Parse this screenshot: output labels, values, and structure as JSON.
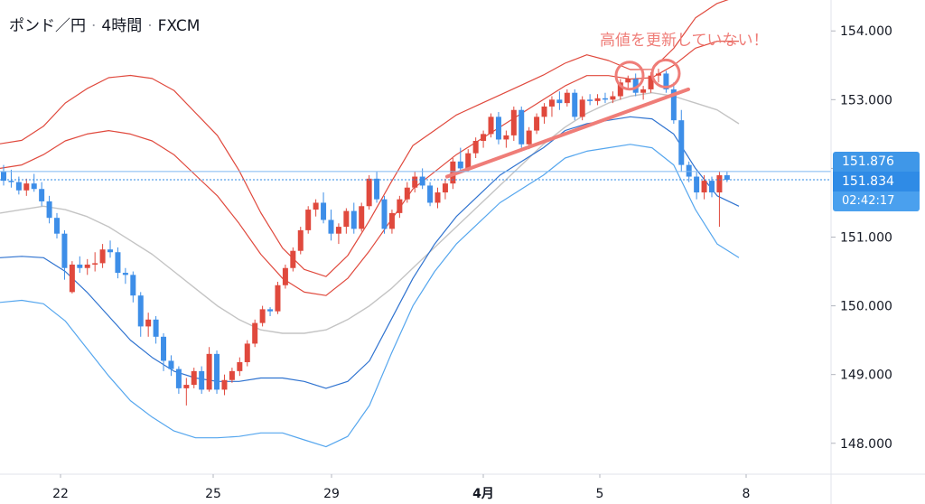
{
  "header": {
    "symbol": "ポンド／円",
    "interval": "4時間",
    "source": "FXCM",
    "separator": "·"
  },
  "annotation": {
    "text": "高値を更新していない！",
    "color": "#ef7d78"
  },
  "price_tags": {
    "upper_band": "151.876",
    "last_price": "151.834",
    "countdown": "02:42:17"
  },
  "colors": {
    "up": "#e0493d",
    "down": "#3d8ee8",
    "band_red": "#e0493d",
    "band_blue": "#2f73d0",
    "band_lightblue": "#55a6ee",
    "mid_gray": "#c4c4c4",
    "annotation": "#ef7d78"
  },
  "chart_data": {
    "type": "candlestick",
    "title": "ポンド／円 · 4時間 · FXCM",
    "ylim": [
      147.55,
      154.45
    ],
    "x_ticks": [
      "22",
      "25",
      "29",
      "4月",
      "5",
      "8"
    ],
    "y_ticks": [
      "148.000",
      "149.000",
      "150.000",
      "151.000",
      "152.000",
      "153.000",
      "154.000"
    ],
    "last_price": 151.834,
    "candles": [
      [
        151.95,
        152.05,
        151.75,
        151.82
      ],
      [
        151.82,
        151.98,
        151.72,
        151.8
      ],
      [
        151.8,
        151.88,
        151.62,
        151.68
      ],
      [
        151.68,
        151.85,
        151.6,
        151.78
      ],
      [
        151.78,
        151.92,
        151.66,
        151.7
      ],
      [
        151.7,
        151.8,
        151.45,
        151.52
      ],
      [
        151.52,
        151.6,
        151.2,
        151.28
      ],
      [
        151.28,
        151.35,
        150.98,
        151.05
      ],
      [
        151.05,
        151.1,
        150.38,
        150.55
      ],
      [
        150.2,
        150.65,
        150.18,
        150.6
      ],
      [
        150.6,
        150.72,
        150.48,
        150.55
      ],
      [
        150.55,
        150.68,
        150.45,
        150.6
      ],
      [
        150.6,
        150.78,
        150.5,
        150.62
      ],
      [
        150.62,
        150.9,
        150.55,
        150.82
      ],
      [
        150.82,
        150.95,
        150.7,
        150.78
      ],
      [
        150.78,
        150.85,
        150.4,
        150.48
      ],
      [
        150.48,
        150.55,
        150.32,
        150.45
      ],
      [
        150.45,
        150.5,
        150.05,
        150.15
      ],
      [
        150.15,
        150.2,
        149.55,
        149.7
      ],
      [
        149.7,
        149.9,
        149.55,
        149.8
      ],
      [
        149.8,
        149.85,
        149.45,
        149.55
      ],
      [
        149.55,
        149.6,
        149.05,
        149.2
      ],
      [
        149.2,
        149.28,
        148.98,
        149.08
      ],
      [
        149.08,
        149.12,
        148.72,
        148.8
      ],
      [
        148.8,
        148.95,
        148.55,
        148.85
      ],
      [
        148.85,
        149.1,
        148.8,
        149.05
      ],
      [
        149.05,
        149.12,
        148.72,
        148.78
      ],
      [
        148.78,
        149.4,
        148.75,
        149.3
      ],
      [
        149.3,
        149.35,
        148.72,
        148.78
      ],
      [
        148.78,
        149.0,
        148.7,
        148.92
      ],
      [
        148.92,
        149.1,
        148.88,
        149.05
      ],
      [
        149.05,
        149.25,
        148.98,
        149.18
      ],
      [
        149.18,
        149.5,
        149.12,
        149.45
      ],
      [
        149.45,
        149.8,
        149.4,
        149.75
      ],
      [
        149.75,
        150.0,
        149.7,
        149.95
      ],
      [
        149.95,
        149.98,
        149.85,
        149.92
      ],
      [
        149.92,
        150.35,
        149.88,
        150.3
      ],
      [
        150.3,
        150.6,
        150.25,
        150.55
      ],
      [
        150.55,
        150.85,
        150.5,
        150.8
      ],
      [
        150.8,
        151.15,
        150.75,
        151.1
      ],
      [
        151.1,
        151.45,
        151.05,
        151.4
      ],
      [
        151.4,
        151.55,
        151.3,
        151.5
      ],
      [
        151.5,
        151.65,
        151.2,
        151.25
      ],
      [
        151.25,
        151.4,
        150.95,
        151.05
      ],
      [
        151.05,
        151.2,
        150.9,
        151.15
      ],
      [
        151.15,
        151.42,
        151.05,
        151.38
      ],
      [
        151.38,
        151.5,
        151.05,
        151.12
      ],
      [
        151.12,
        151.5,
        151.08,
        151.45
      ],
      [
        151.45,
        151.9,
        151.4,
        151.85
      ],
      [
        151.85,
        151.95,
        151.5,
        151.55
      ],
      [
        151.55,
        151.6,
        151.05,
        151.12
      ],
      [
        151.12,
        151.4,
        151.05,
        151.35
      ],
      [
        151.35,
        151.6,
        151.28,
        151.55
      ],
      [
        151.55,
        151.8,
        151.5,
        151.72
      ],
      [
        151.72,
        151.95,
        151.65,
        151.88
      ],
      [
        151.88,
        152.0,
        151.7,
        151.75
      ],
      [
        151.75,
        151.8,
        151.45,
        151.5
      ],
      [
        151.5,
        151.72,
        151.42,
        151.65
      ],
      [
        151.65,
        151.85,
        151.55,
        151.78
      ],
      [
        151.78,
        152.15,
        151.7,
        152.1
      ],
      [
        152.1,
        152.3,
        151.95,
        152.0
      ],
      [
        152.0,
        152.28,
        151.95,
        152.22
      ],
      [
        152.22,
        152.45,
        152.15,
        152.4
      ],
      [
        152.4,
        152.55,
        152.3,
        152.5
      ],
      [
        152.5,
        152.8,
        152.45,
        152.75
      ],
      [
        152.75,
        152.82,
        152.35,
        152.42
      ],
      [
        152.42,
        152.55,
        152.3,
        152.48
      ],
      [
        152.48,
        152.9,
        152.4,
        152.85
      ],
      [
        152.85,
        152.9,
        152.3,
        152.35
      ],
      [
        152.35,
        152.6,
        152.28,
        152.55
      ],
      [
        152.55,
        152.8,
        152.5,
        152.75
      ],
      [
        152.75,
        152.95,
        152.65,
        152.9
      ],
      [
        152.9,
        153.05,
        152.75,
        153.0
      ],
      [
        153.0,
        153.12,
        152.85,
        152.95
      ],
      [
        152.95,
        153.15,
        152.9,
        153.1
      ],
      [
        153.1,
        153.15,
        152.7,
        152.75
      ],
      [
        152.75,
        153.05,
        152.7,
        153.0
      ],
      [
        153.0,
        153.08,
        152.92,
        152.98
      ],
      [
        152.98,
        153.08,
        152.92,
        153.02
      ],
      [
        153.02,
        153.1,
        152.95,
        153.0
      ],
      [
        153.0,
        153.12,
        152.95,
        153.05
      ],
      [
        153.05,
        153.3,
        153.0,
        153.25
      ],
      [
        153.25,
        153.35,
        153.15,
        153.3
      ],
      [
        153.3,
        153.38,
        153.05,
        153.1
      ],
      [
        153.1,
        153.2,
        153.0,
        153.15
      ],
      [
        153.15,
        153.4,
        153.1,
        153.35
      ],
      [
        153.35,
        153.45,
        153.25,
        153.38
      ],
      [
        153.38,
        153.42,
        153.1,
        153.15
      ],
      [
        153.15,
        153.25,
        152.65,
        152.7
      ],
      [
        152.7,
        152.85,
        151.95,
        152.05
      ],
      [
        152.05,
        152.1,
        151.8,
        151.88
      ],
      [
        151.88,
        151.95,
        151.55,
        151.65
      ],
      [
        151.65,
        151.9,
        151.55,
        151.82
      ],
      [
        151.82,
        151.88,
        151.58,
        151.65
      ],
      [
        151.65,
        151.95,
        151.15,
        151.9
      ],
      [
        151.9,
        151.95,
        151.8,
        151.834
      ]
    ],
    "bands": {
      "upper": [
        152.0,
        152.05,
        152.2,
        152.4,
        152.5,
        152.55,
        152.5,
        152.4,
        152.2,
        151.9,
        151.6,
        151.2,
        150.75,
        150.4,
        150.2,
        150.15,
        150.4,
        150.8,
        151.25,
        151.7,
        151.95,
        152.2,
        152.4,
        152.6,
        152.8,
        153.0,
        153.2,
        153.35,
        153.35,
        153.3,
        153.32,
        153.5,
        153.75,
        153.85,
        153.85
      ],
      "mid": [
        151.35,
        151.4,
        151.45,
        151.4,
        151.3,
        151.15,
        150.95,
        150.75,
        150.5,
        150.25,
        150.0,
        149.8,
        149.65,
        149.6,
        149.6,
        149.65,
        149.8,
        150.0,
        150.25,
        150.55,
        150.85,
        151.15,
        151.45,
        151.75,
        152.05,
        152.35,
        152.6,
        152.8,
        152.95,
        153.05,
        153.1,
        153.05,
        152.95,
        152.85,
        152.65
      ],
      "lower": [
        150.7,
        150.72,
        150.7,
        150.5,
        150.2,
        149.85,
        149.5,
        149.25,
        149.05,
        148.95,
        148.9,
        148.9,
        148.95,
        148.95,
        148.9,
        148.8,
        148.9,
        149.2,
        149.8,
        150.4,
        150.9,
        151.3,
        151.6,
        151.9,
        152.1,
        152.3,
        152.55,
        152.65,
        152.7,
        152.75,
        152.72,
        152.5,
        152.0,
        151.6,
        151.45
      ],
      "outer": [
        150.05,
        150.08,
        150.03,
        149.78,
        149.38,
        148.98,
        148.62,
        148.38,
        148.18,
        148.08,
        148.08,
        148.1,
        148.15,
        148.15,
        148.05,
        147.95,
        148.1,
        148.55,
        149.3,
        150.0,
        150.5,
        150.9,
        151.2,
        151.5,
        151.7,
        151.9,
        152.15,
        152.25,
        152.3,
        152.35,
        152.3,
        152.05,
        151.4,
        150.9,
        150.7
      ]
    }
  }
}
